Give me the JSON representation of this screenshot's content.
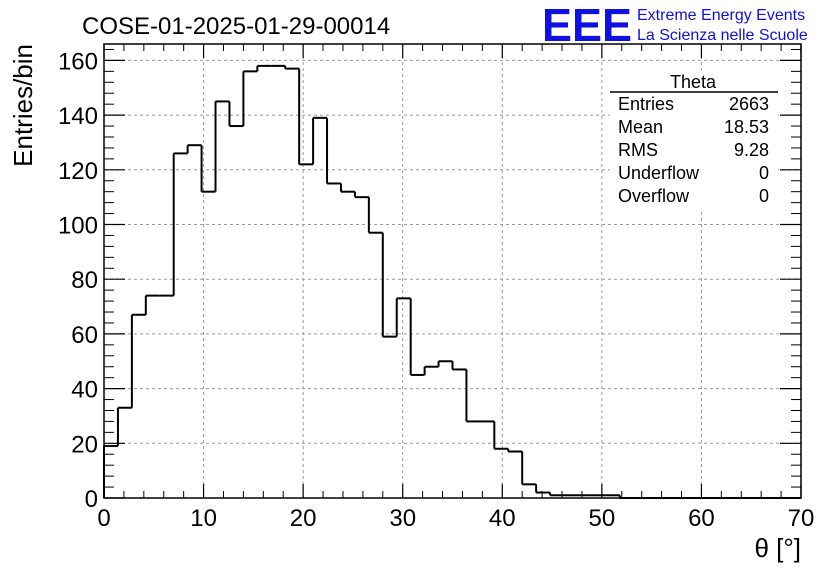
{
  "chart_data": {
    "type": "histogram",
    "title": "COSE-01-2025-01-29-00014",
    "xlabel": "θ [°]",
    "ylabel": "Entries/bin",
    "xlim": [
      0,
      70
    ],
    "ylim": [
      0,
      166
    ],
    "grid": true,
    "bin_width": 1.4,
    "x_ticks": [
      0,
      10,
      20,
      30,
      40,
      50,
      60,
      70
    ],
    "y_ticks": [
      0,
      20,
      40,
      60,
      80,
      100,
      120,
      140,
      160
    ],
    "values": [
      19,
      33,
      67,
      74,
      74,
      126,
      129,
      112,
      145,
      136,
      156,
      158,
      158,
      157,
      122,
      139,
      115,
      112,
      110,
      97,
      59,
      73,
      45,
      48,
      50,
      47,
      28,
      28,
      18,
      17,
      5,
      2,
      1,
      1,
      1,
      1,
      1,
      0,
      0,
      0,
      0,
      0,
      0,
      0,
      0,
      0,
      0,
      0,
      0,
      0
    ],
    "stats_box": {
      "title": "Theta",
      "rows": [
        {
          "label": "Entries",
          "value": "2663"
        },
        {
          "label": "Mean",
          "value": "18.53"
        },
        {
          "label": "RMS",
          "value": "9.28"
        },
        {
          "label": "Underflow",
          "value": "0"
        },
        {
          "label": "Overflow",
          "value": "0"
        }
      ]
    },
    "logo": {
      "mark": "EEE",
      "line1": "Extreme Energy Events",
      "line2": "La Scienza nelle Scuole",
      "color": "#1010e0"
    },
    "line_color": "#000000"
  }
}
